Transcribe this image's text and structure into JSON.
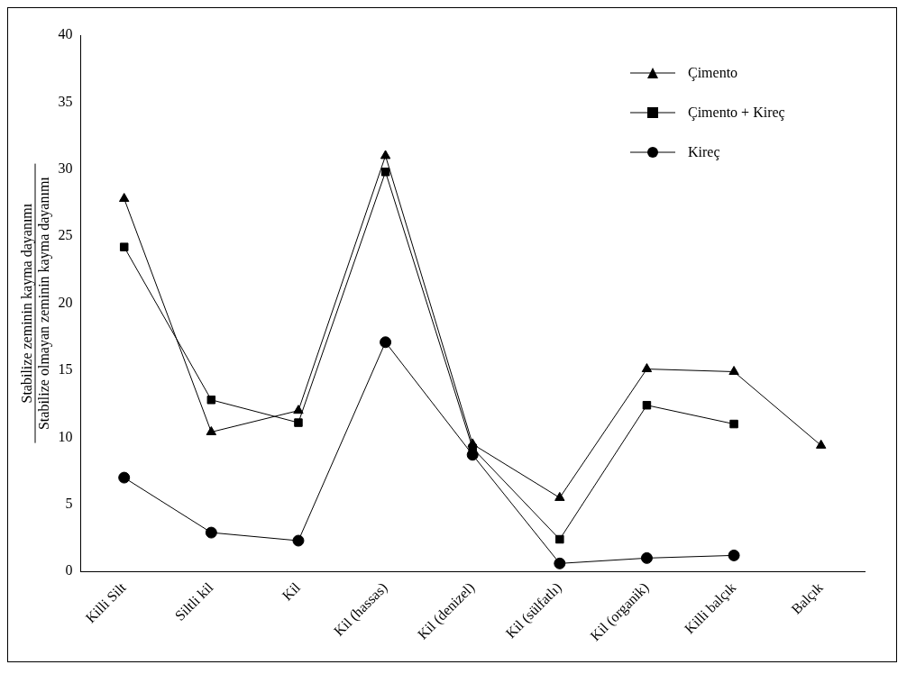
{
  "chart_data": {
    "type": "line",
    "ylabel": "Stabilize zeminin kayma dayanımı\nStabilize olmayan zeminin kayma dayanımı",
    "categories": [
      "Killi Silt",
      "Siltli kil",
      "Kil",
      "Kil (hassas)",
      "Kil (denizel)",
      "Kil (sülfatlı)",
      "Kil (organik)",
      "Killi balçık",
      "Balçık"
    ],
    "series": [
      {
        "name": "Çimento",
        "color": "#000000",
        "marker": "triangle",
        "values": [
          27.8,
          10.4,
          12.0,
          31.0,
          9.5,
          5.5,
          15.1,
          14.9,
          9.4
        ]
      },
      {
        "name": "Çimento + Kireç",
        "color": "#000000",
        "marker": "square",
        "values": [
          24.2,
          12.8,
          11.1,
          29.8,
          9.2,
          2.4,
          12.4,
          11.0,
          null
        ]
      },
      {
        "name": "Kireç",
        "color": "#000000",
        "marker": "circle",
        "values": [
          7.0,
          2.9,
          2.3,
          17.1,
          8.7,
          0.6,
          1.0,
          1.2,
          null
        ]
      }
    ],
    "ylim": [
      0,
      40
    ],
    "yticks": [
      0,
      5,
      10,
      15,
      20,
      25,
      30,
      35,
      40
    ],
    "grid": false,
    "legend": "top right",
    "line_style": "solid"
  }
}
